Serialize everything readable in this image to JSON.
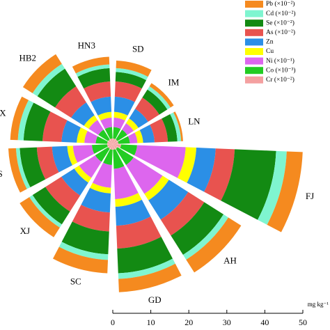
{
  "chart_data": {
    "type": "polar-stacked-bar",
    "categories": [
      "FJ",
      "AH",
      "GD",
      "SC",
      "XJ",
      "JS",
      "SX",
      "HB2",
      "HN3",
      "SD",
      "IM",
      "LN"
    ],
    "series": [
      {
        "name": "Pb (×10⁻²)",
        "color": "#f58a1f",
        "values": [
          4.2,
          4,
          3.5,
          3.5,
          3,
          2,
          2,
          3,
          2,
          2,
          1,
          0.5
        ]
      },
      {
        "name": "Cd (×10⁻²)",
        "color": "#7ff5d0",
        "values": [
          2.8,
          1.5,
          1.5,
          1.5,
          1,
          1,
          1.5,
          1.5,
          1,
          1,
          1,
          1
        ]
      },
      {
        "name": "Se (×10⁻²)",
        "color": "#138a13",
        "values": [
          10.9,
          6,
          6.5,
          6,
          4,
          4.5,
          5,
          5.5,
          3.5,
          2.5,
          2.5,
          2.5
        ]
      },
      {
        "name": "As (×10⁻²)",
        "color": "#e8534f",
        "values": [
          5.0,
          5,
          6,
          5,
          5,
          4,
          5,
          5,
          4,
          4,
          3.5,
          3.5
        ]
      },
      {
        "name": "Zn",
        "color": "#2b8fe6",
        "values": [
          5.1,
          6,
          5,
          5,
          4,
          4,
          4,
          4,
          4,
          4,
          3,
          3
        ]
      },
      {
        "name": "Cu",
        "color": "#ffff00",
        "values": [
          2.8,
          2,
          2,
          1.5,
          1.5,
          1.5,
          2,
          1.5,
          1.5,
          1.5,
          1.5,
          1.5
        ]
      },
      {
        "name": "Ni (×10⁻¹)",
        "color": "#dd66ee",
        "values": [
          12.8,
          9,
          8,
          6,
          5,
          5,
          3,
          3,
          2.5,
          2.5,
          2,
          2
        ]
      },
      {
        "name": "Co (×10⁻³)",
        "color": "#22cc22",
        "values": [
          4.2,
          5,
          5,
          4,
          4,
          4,
          3,
          3,
          3,
          3,
          3,
          3
        ]
      },
      {
        "name": "Cr (×10⁻²)",
        "color": "#f4a0a0",
        "values": [
          2.2,
          1.5,
          1.5,
          1.5,
          1.5,
          1.5,
          1.5,
          1.5,
          1.5,
          1.5,
          1.5,
          1.5
        ]
      }
    ],
    "xlim": [
      0,
      50
    ],
    "xticks": [
      0,
      10,
      20,
      30,
      40,
      50
    ],
    "xlabel": "mg kg⁻¹"
  }
}
